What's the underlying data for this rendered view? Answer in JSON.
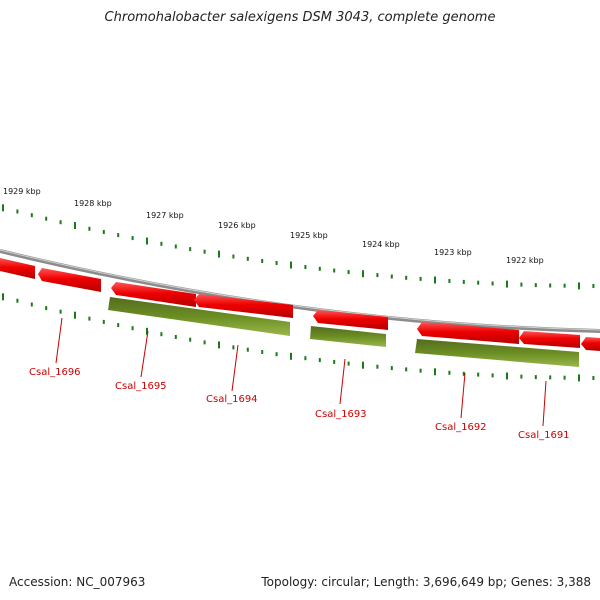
{
  "title": "Chromohalobacter salexigens DSM 3043, complete genome",
  "footer": {
    "accession": "Accession: NC_007963",
    "topology": "Topology: circular; Length: 3,696,649 bp; Genes: 3,388"
  },
  "colors": {
    "forward_gene": "#ee0000",
    "reverse_gene": "#6b8e23",
    "backbone": "#8c8c8c",
    "ticks": "#1a7a1a",
    "label": "#cc0000"
  },
  "ruler": {
    "labels": [
      "1929 kbp",
      "1928 kbp",
      "1927 kbp",
      "1926 kbp",
      "1925 kbp",
      "1924 kbp",
      "1923 kbp",
      "1922 kbp"
    ]
  },
  "genes": [
    {
      "name": "Csal_1696",
      "strand": "forward"
    },
    {
      "name": "Csal_1695",
      "strand": "reverse"
    },
    {
      "name": "Csal_1694",
      "strand": "forward"
    },
    {
      "name": "Csal_1693",
      "strand": "reverse"
    },
    {
      "name": "Csal_1692",
      "strand": "reverse"
    },
    {
      "name": "Csal_1691",
      "strand": "reverse"
    }
  ]
}
